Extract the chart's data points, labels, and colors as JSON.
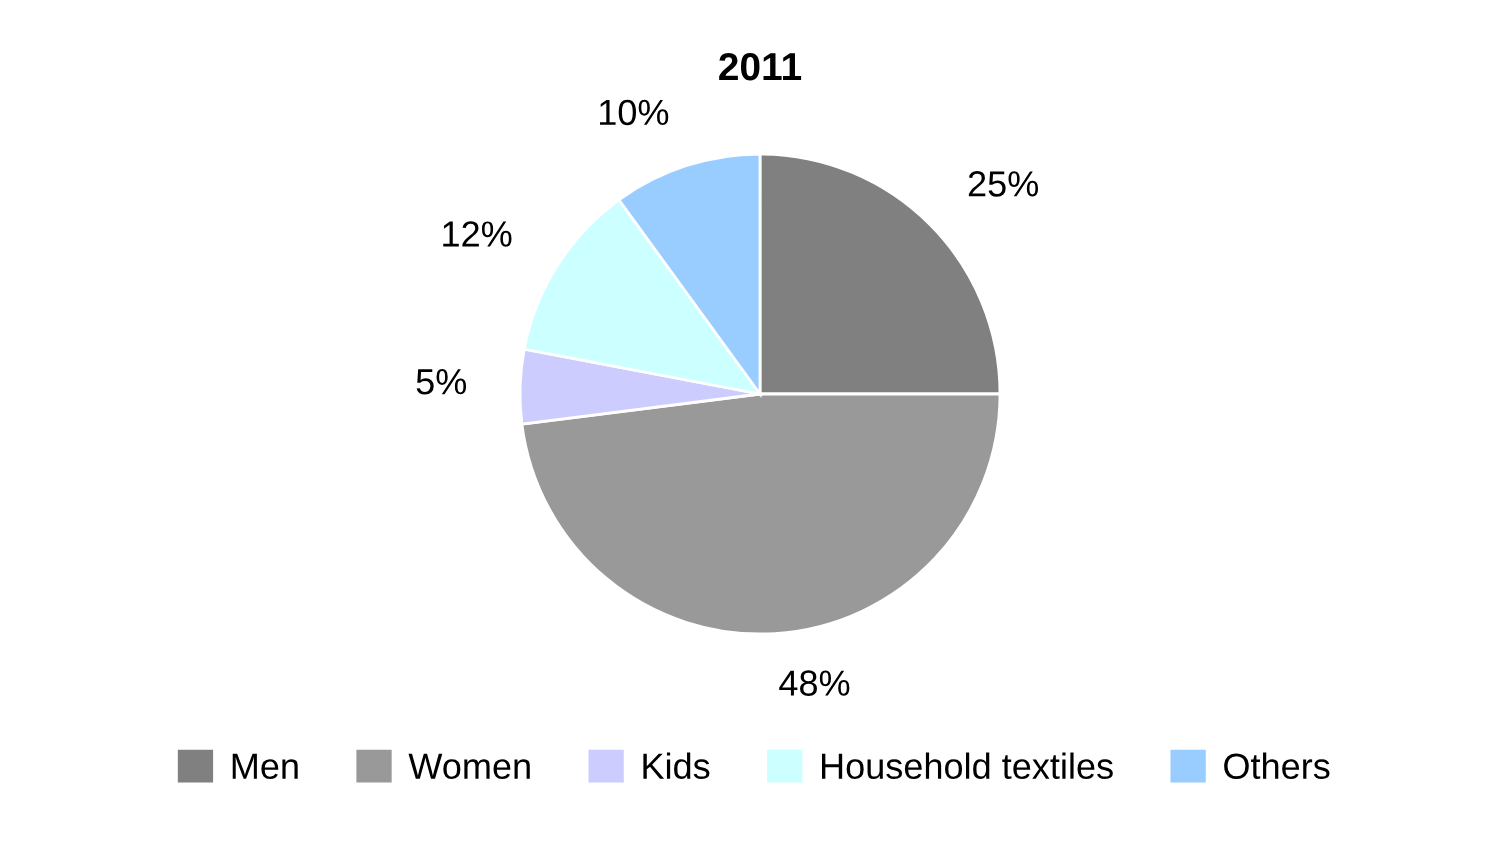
{
  "chart_data": {
    "type": "pie",
    "title": "2011",
    "categories": [
      "Men",
      "Women",
      "Kids",
      "Household textiles",
      "Others"
    ],
    "values": [
      25,
      48,
      5,
      12,
      10
    ],
    "value_labels": [
      "25%",
      "48%",
      "5%",
      "12%",
      "10%"
    ],
    "colors": [
      "#808080",
      "#999999",
      "#ccccff",
      "#ccffff",
      "#99ccff"
    ],
    "legend": "bottom"
  }
}
